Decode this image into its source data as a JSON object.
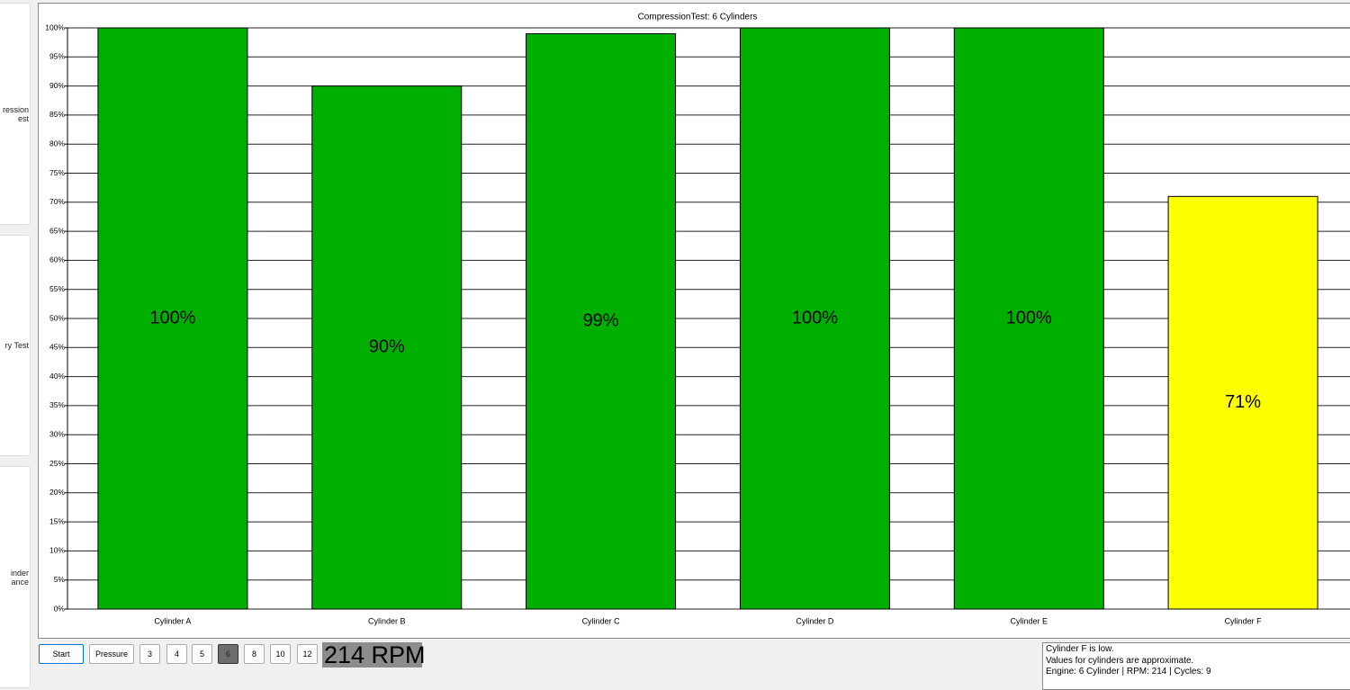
{
  "sidebar": [
    [
      "ression",
      "est"
    ],
    [
      "ry Test"
    ],
    [
      "inder",
      "ance"
    ]
  ],
  "chart_data": {
    "type": "bar",
    "title": "CompressionTest: 6 Cylinders",
    "categories": [
      "Cylinder A",
      "Cylinder B",
      "Cylinder C",
      "Cylinder D",
      "Cylinder E",
      "Cylinder F"
    ],
    "values": [
      100,
      90,
      99,
      100,
      100,
      71
    ],
    "value_labels": [
      "100%",
      "90%",
      "99%",
      "100%",
      "100%",
      "71%"
    ],
    "colors": [
      "#00b000",
      "#00b000",
      "#00b000",
      "#00b000",
      "#00b000",
      "#ffff00"
    ],
    "ylim": [
      0,
      100
    ],
    "yticks": [
      {
        "value": 0,
        "label": "0%"
      },
      {
        "value": 5,
        "label": "5%"
      },
      {
        "value": 10,
        "label": "10%"
      },
      {
        "value": 15,
        "label": "15%"
      },
      {
        "value": 20,
        "label": "20%"
      },
      {
        "value": 25,
        "label": "25%"
      },
      {
        "value": 30,
        "label": "30%"
      },
      {
        "value": 35,
        "label": "35%"
      },
      {
        "value": 40,
        "label": "40%"
      },
      {
        "value": 45,
        "label": "45%"
      },
      {
        "value": 50,
        "label": "50%"
      },
      {
        "value": 55,
        "label": "55%"
      },
      {
        "value": 60,
        "label": "60%"
      },
      {
        "value": 65,
        "label": "65%"
      },
      {
        "value": 70,
        "label": "70%"
      },
      {
        "value": 75,
        "label": "75%"
      },
      {
        "value": 80,
        "label": "80%"
      },
      {
        "value": 85,
        "label": "85%"
      },
      {
        "value": 90,
        "label": "90%"
      },
      {
        "value": 95,
        "label": "95%"
      },
      {
        "value": 100,
        "label": "100%"
      }
    ],
    "grid": true
  },
  "toolbar": {
    "buttons": [
      "Start",
      "Pressure"
    ],
    "cylinder_buttons": [
      "3",
      "4",
      "5",
      "6",
      "8",
      "10",
      "12"
    ],
    "selected": 3,
    "rpm": "214 RPM"
  },
  "status": [
    "Cylinder F is low.",
    "Values for cylinders are approximate.",
    "Engine: 6 Cylinder | RPM: 214 | Cycles: 9"
  ]
}
